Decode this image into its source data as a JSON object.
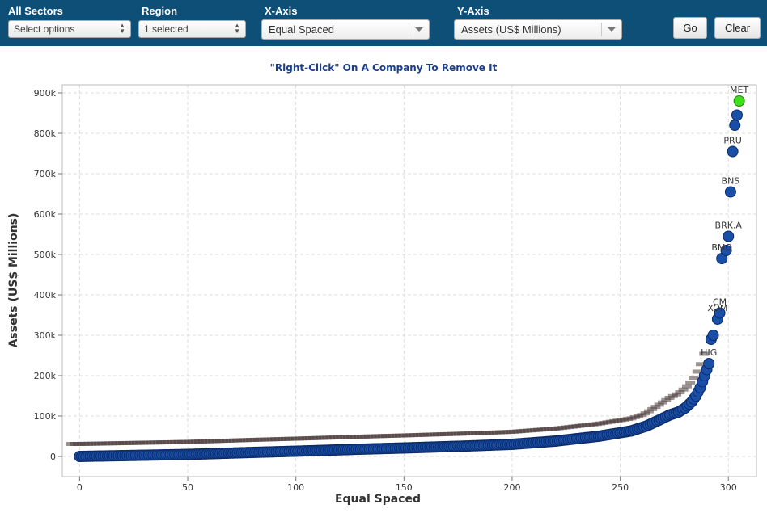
{
  "toolbar": {
    "sectors": {
      "label": "All Sectors",
      "value": "Select options"
    },
    "region": {
      "label": "Region",
      "value": "1 selected"
    },
    "xaxis": {
      "label": "X-Axis",
      "value": "Equal Spaced"
    },
    "yaxis": {
      "label": "Y-Axis",
      "value": "Assets (US$ Millions)"
    },
    "go_label": "Go",
    "clear_label": "Clear",
    "bg_color": "#0e4f78"
  },
  "hint": "\"Right-Click\" On A Company To Remove It",
  "chart_data": {
    "type": "scatter",
    "xlabel": "Equal Spaced",
    "ylabel": "Assets (US$ Millions)",
    "xlim": [
      -8,
      313
    ],
    "ylim": [
      -50000,
      920000
    ],
    "xticks": [
      0,
      50,
      100,
      150,
      200,
      250,
      300
    ],
    "xtick_labels": [
      "0",
      "50",
      "100",
      "150",
      "200",
      "250",
      "300"
    ],
    "yticks": [
      0,
      100000,
      200000,
      300000,
      400000,
      500000,
      600000,
      700000,
      800000,
      900000
    ],
    "ytick_labels": [
      "0",
      "100k",
      "200k",
      "300k",
      "400k",
      "500k",
      "600k",
      "700k",
      "800k",
      "900k"
    ],
    "grid": true,
    "point_color": "#1a4fa8",
    "highlight_color": "#3ee01c",
    "curve": [
      [
        0,
        0
      ],
      [
        20,
        2000
      ],
      [
        50,
        5000
      ],
      [
        80,
        10000
      ],
      [
        100,
        13000
      ],
      [
        130,
        18000
      ],
      [
        150,
        21000
      ],
      [
        180,
        26000
      ],
      [
        200,
        30000
      ],
      [
        220,
        38000
      ],
      [
        240,
        50000
      ],
      [
        255,
        63000
      ],
      [
        262,
        75000
      ],
      [
        268,
        90000
      ],
      [
        273,
        103000
      ],
      [
        277,
        110000
      ],
      [
        280,
        120000
      ],
      [
        283,
        135000
      ],
      [
        285,
        150000
      ],
      [
        287,
        170000
      ],
      [
        289,
        200000
      ],
      [
        291,
        230000
      ]
    ],
    "points": [
      {
        "label": "",
        "x": 292,
        "y": 290000
      },
      {
        "label": "",
        "x": 293,
        "y": 300000
      },
      {
        "label": "XOM",
        "x": 295,
        "y": 340000
      },
      {
        "label": "CM",
        "x": 296,
        "y": 355000
      },
      {
        "label": "BMO",
        "x": 297,
        "y": 490000
      },
      {
        "label": "",
        "x": 299,
        "y": 510000
      },
      {
        "label": "BRK.A",
        "x": 300,
        "y": 545000
      },
      {
        "label": "BNS",
        "x": 301,
        "y": 655000
      },
      {
        "label": "PRU",
        "x": 302,
        "y": 755000
      },
      {
        "label": "",
        "x": 303,
        "y": 820000
      },
      {
        "label": "",
        "x": 304,
        "y": 845000
      },
      {
        "label": "MET",
        "x": 305,
        "y": 880000,
        "highlight": true
      }
    ],
    "annotations": [
      "HIG",
      "CM",
      "PRU",
      "BNS",
      "BRK.A",
      "BMO",
      "XOM",
      "MET"
    ]
  }
}
